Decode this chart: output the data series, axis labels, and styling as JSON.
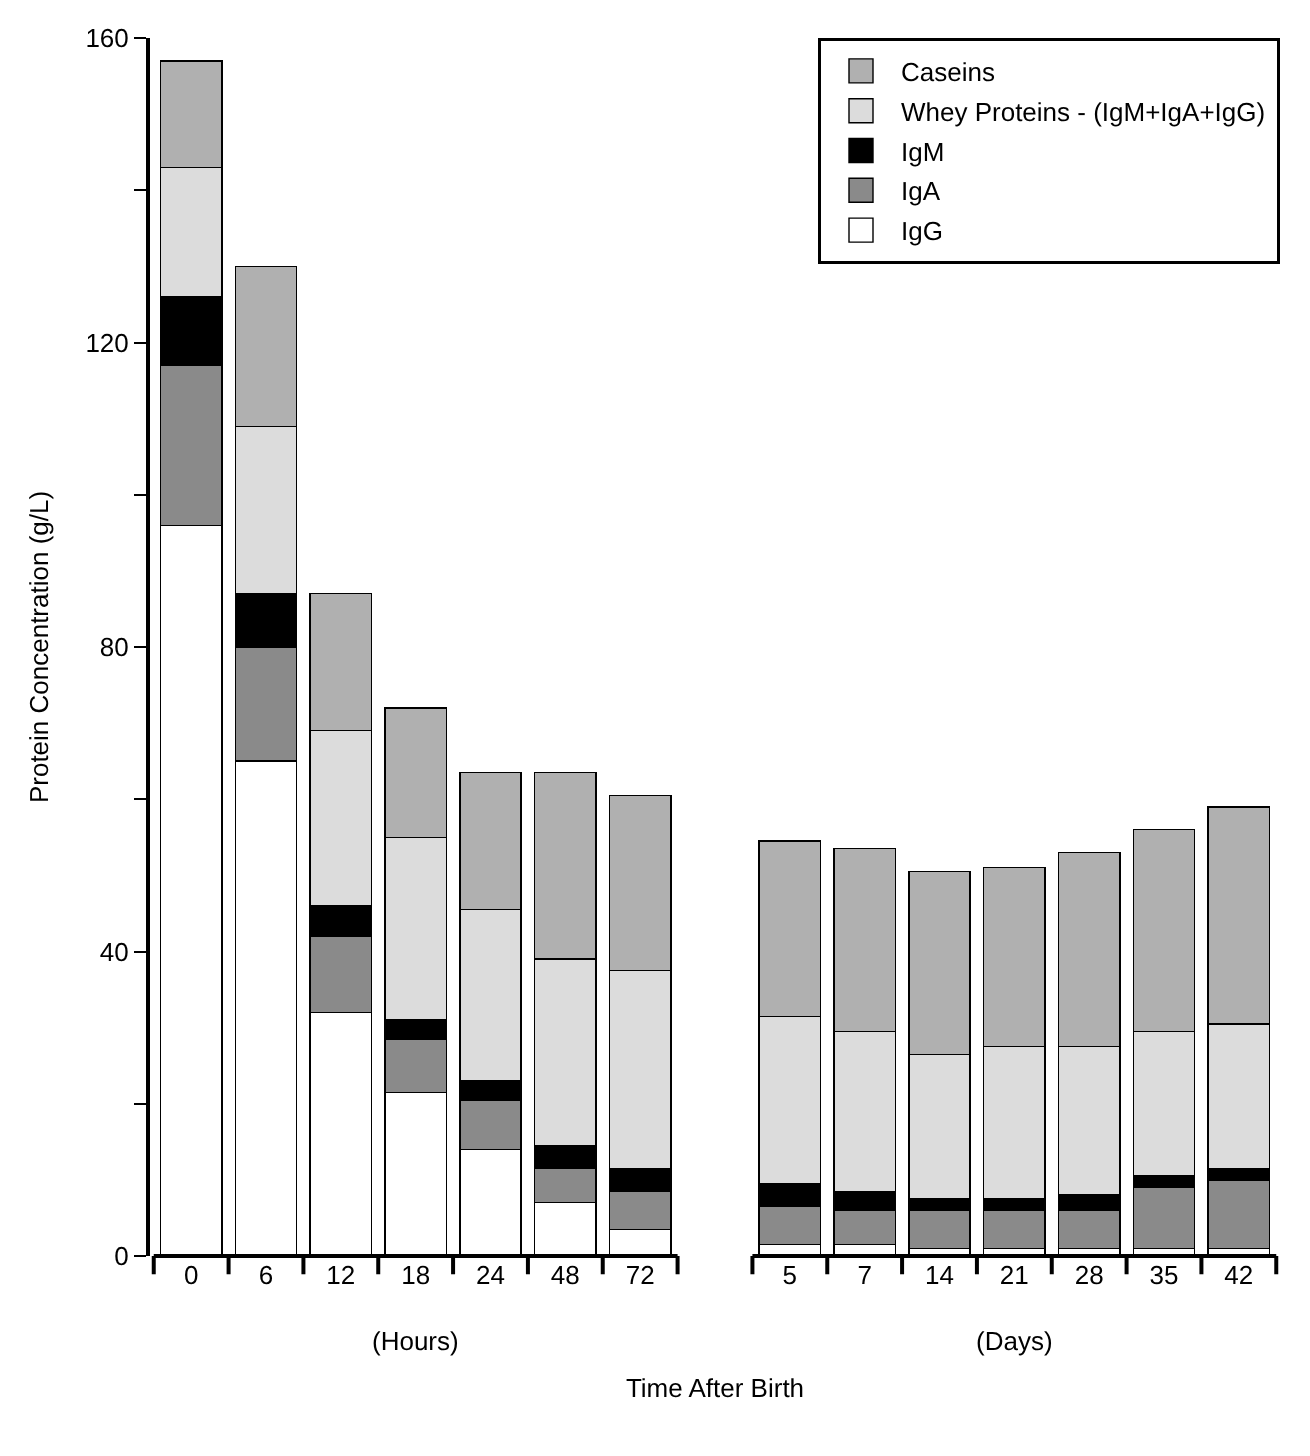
{
  "chart_data": {
    "type": "bar",
    "stacked": true,
    "xlabel": "Time After Birth",
    "ylabel": "Protein Concentration (g/L)",
    "categories": [
      "0",
      "6",
      "12",
      "18",
      "24",
      "48",
      "72",
      null,
      "5",
      "7",
      "14",
      "21",
      "28",
      "35",
      "42"
    ],
    "series": [
      {
        "name": "IgG",
        "color": "#ffffff",
        "values": [
          96,
          65,
          32,
          21.5,
          14,
          7,
          3.5,
          null,
          1.5,
          1.5,
          1,
          1,
          1,
          1,
          1
        ]
      },
      {
        "name": "IgA",
        "color": "#8a8a8a",
        "values": [
          21,
          15,
          10,
          7,
          6.5,
          4.5,
          5,
          null,
          5,
          4.5,
          5,
          5,
          5,
          8,
          9
        ]
      },
      {
        "name": "IgM",
        "color": "#000000",
        "values": [
          9,
          7,
          4,
          2.5,
          2.5,
          3,
          3,
          null,
          3,
          2.5,
          1.5,
          1.5,
          2,
          1.5,
          1.5
        ]
      },
      {
        "name": "Whey Proteins - (IgM+IgA+IgG)",
        "color": "#dcdcdc",
        "values": [
          17,
          22,
          23,
          24,
          22.5,
          24.5,
          26,
          null,
          22,
          21,
          19,
          20,
          19.5,
          19,
          19
        ]
      },
      {
        "name": "Caseins",
        "color": "#b0b0b0",
        "values": [
          14,
          21,
          18,
          17,
          18,
          24.5,
          23,
          null,
          23,
          24,
          24,
          23.5,
          25.5,
          26.5,
          28.5
        ]
      }
    ],
    "ylim": [
      0,
      160
    ],
    "yticks": [
      0,
      {
        "value": 20,
        "label": null
      },
      40,
      {
        "value": 60,
        "label": null
      },
      80,
      {
        "value": 100,
        "label": null
      },
      120,
      {
        "value": 140,
        "label": null
      },
      160
    ],
    "annotations": [
      "(Hours)",
      "(Days)"
    ],
    "legend": "top right"
  }
}
